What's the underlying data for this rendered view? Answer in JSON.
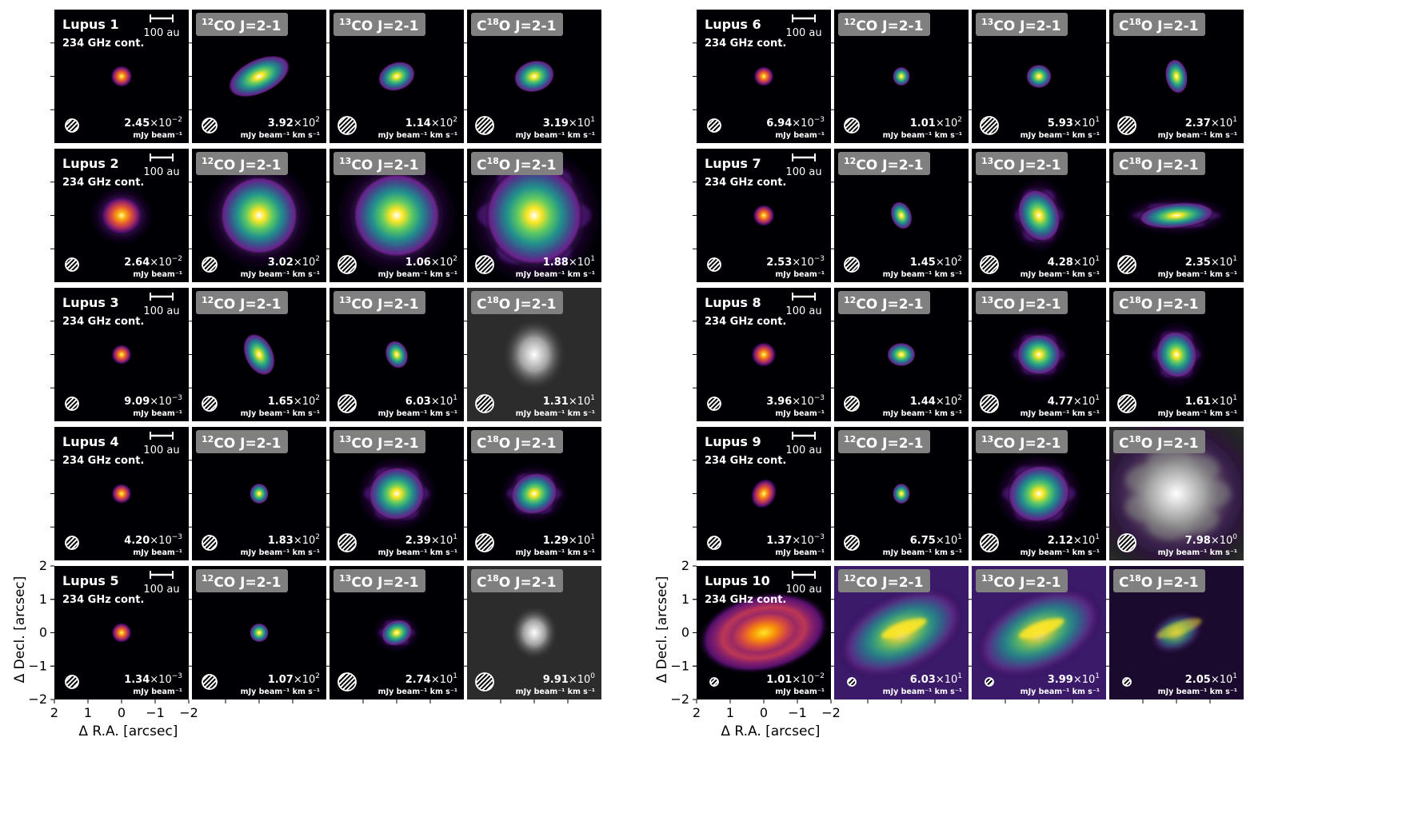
{
  "figure": {
    "axes": {
      "xlabel": "Δ R.A. [arcsec]",
      "ylabel": "Δ Decl. [arcsec]",
      "xticks": [
        "2",
        "1",
        "0",
        "−1",
        "−2"
      ],
      "yticks": [
        "2",
        "1",
        "0",
        "−1",
        "−2"
      ]
    },
    "scalebar_label": "100 au",
    "cont_label": "234 GHz cont.",
    "units": {
      "cont": "mJy beam⁻¹",
      "line": "mJy beam⁻¹ km s⁻¹"
    },
    "line_labels": [
      {
        "sup": "12",
        "pre": "",
        "post": "CO J=2-1"
      },
      {
        "sup": "13",
        "pre": "",
        "post": "CO J=2-1"
      },
      {
        "sup": "18",
        "pre": "C",
        "post": "O J=2-1"
      }
    ],
    "colors": {
      "colormap_low": "#000004",
      "colormap_mid": "#7b2382",
      "colormap_high": "#fcfdbf",
      "viridis_high": "#fde725",
      "gray_bg": "#2c2c2c",
      "label_box": "#808080"
    },
    "sources": [
      {
        "name": "Lupus 1",
        "scales": [
          {
            "m": "2.45",
            "e": "−2"
          },
          {
            "m": "3.92",
            "e": "2"
          },
          {
            "m": "1.14",
            "e": "2"
          },
          {
            "m": "3.19",
            "e": "1"
          }
        ]
      },
      {
        "name": "Lupus 2",
        "scales": [
          {
            "m": "2.64",
            "e": "−2"
          },
          {
            "m": "3.02",
            "e": "2"
          },
          {
            "m": "1.06",
            "e": "2"
          },
          {
            "m": "1.88",
            "e": "1"
          }
        ]
      },
      {
        "name": "Lupus 3",
        "scales": [
          {
            "m": "9.09",
            "e": "−3"
          },
          {
            "m": "1.65",
            "e": "2"
          },
          {
            "m": "6.03",
            "e": "1"
          },
          {
            "m": "1.31",
            "e": "1"
          }
        ]
      },
      {
        "name": "Lupus 4",
        "scales": [
          {
            "m": "4.20",
            "e": "−3"
          },
          {
            "m": "1.83",
            "e": "2"
          },
          {
            "m": "2.39",
            "e": "1"
          },
          {
            "m": "1.29",
            "e": "1"
          }
        ]
      },
      {
        "name": "Lupus 5",
        "scales": [
          {
            "m": "1.34",
            "e": "−3"
          },
          {
            "m": "1.07",
            "e": "2"
          },
          {
            "m": "2.74",
            "e": "1"
          },
          {
            "m": "9.91",
            "e": "0"
          }
        ]
      },
      {
        "name": "Lupus 6",
        "scales": [
          {
            "m": "6.94",
            "e": "−3"
          },
          {
            "m": "1.01",
            "e": "2"
          },
          {
            "m": "5.93",
            "e": "1"
          },
          {
            "m": "2.37",
            "e": "1"
          }
        ]
      },
      {
        "name": "Lupus 7",
        "scales": [
          {
            "m": "2.53",
            "e": "−3"
          },
          {
            "m": "1.45",
            "e": "2"
          },
          {
            "m": "4.28",
            "e": "1"
          },
          {
            "m": "2.35",
            "e": "1"
          }
        ]
      },
      {
        "name": "Lupus 8",
        "scales": [
          {
            "m": "3.96",
            "e": "−3"
          },
          {
            "m": "1.44",
            "e": "2"
          },
          {
            "m": "4.77",
            "e": "1"
          },
          {
            "m": "1.61",
            "e": "1"
          }
        ]
      },
      {
        "name": "Lupus 9",
        "scales": [
          {
            "m": "1.37",
            "e": "−3"
          },
          {
            "m": "6.75",
            "e": "1"
          },
          {
            "m": "2.12",
            "e": "1"
          },
          {
            "m": "7.98",
            "e": "0"
          }
        ]
      },
      {
        "name": "Lupus 10",
        "scales": [
          {
            "m": "1.01",
            "e": "−2"
          },
          {
            "m": "6.03",
            "e": "1"
          },
          {
            "m": "3.99",
            "e": "1"
          },
          {
            "m": "2.05",
            "e": "1"
          }
        ]
      }
    ]
  }
}
